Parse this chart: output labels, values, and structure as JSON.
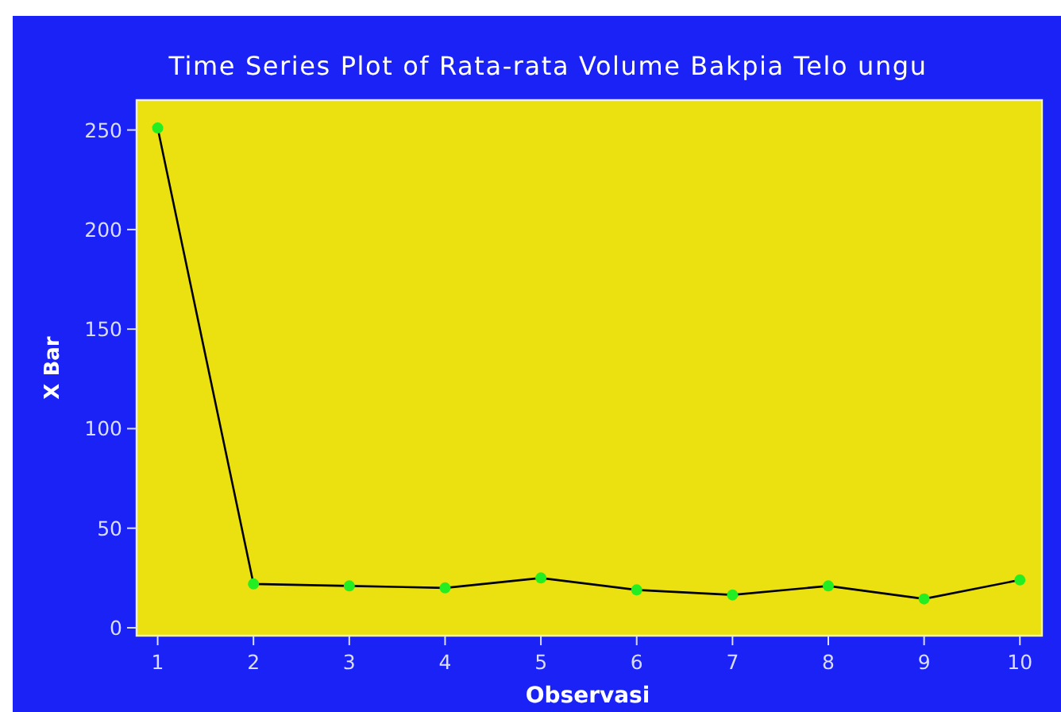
{
  "chart_data": {
    "type": "line",
    "title": "Time Series Plot of Rata-rata Volume Bakpia Telo ungu",
    "xlabel": "Observasi",
    "ylabel": "X Bar",
    "x": [
      1,
      2,
      3,
      4,
      5,
      6,
      7,
      8,
      9,
      10
    ],
    "series": [
      {
        "color": "#000000",
        "values": [
          251,
          22,
          21,
          20,
          25,
          19,
          16.5,
          21,
          14.5,
          24
        ]
      }
    ],
    "xlim": [
      0.78,
      10.23
    ],
    "ylim": [
      -4,
      265
    ],
    "xticks": [
      1,
      2,
      3,
      4,
      5,
      6,
      7,
      8,
      9,
      10
    ],
    "yticks": [
      0,
      50,
      100,
      150,
      200,
      250
    ],
    "grid": false,
    "marker": "circle",
    "line_style": "solid"
  }
}
